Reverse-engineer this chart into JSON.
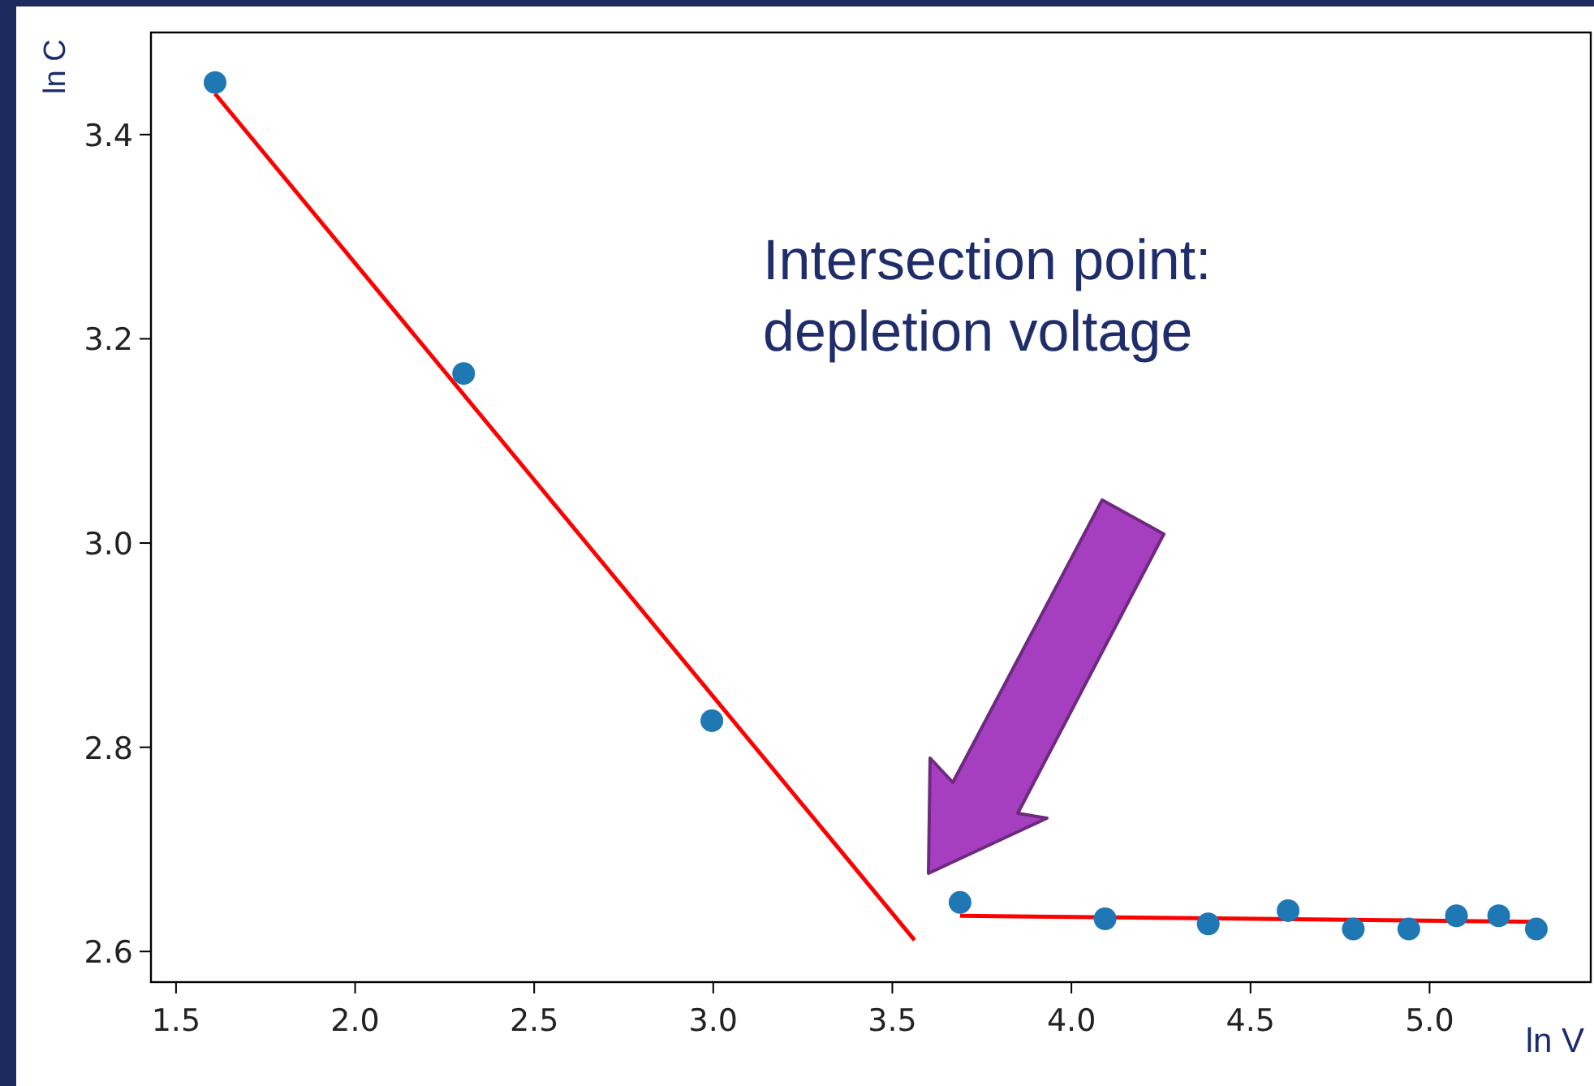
{
  "chart_data": {
    "type": "scatter",
    "xlabel": "ln V",
    "ylabel": "ln C",
    "xlim": [
      1.43,
      5.45
    ],
    "ylim": [
      2.57,
      3.5
    ],
    "xticks": [
      {
        "value": 1.5,
        "label": "1.5"
      },
      {
        "value": 2,
        "label": "2.0"
      },
      {
        "value": 2.5,
        "label": "2.5"
      },
      {
        "value": 3,
        "label": "3.0"
      },
      {
        "value": 3.5,
        "label": "3.5"
      },
      {
        "value": 4,
        "label": "4.0"
      },
      {
        "value": 4.5,
        "label": "4.5"
      },
      {
        "value": 5,
        "label": "5.0"
      }
    ],
    "yticks": [
      2.6,
      2.8,
      {
        "value": 3,
        "label": "3.0"
      },
      3.2,
      3.4
    ],
    "grid": false,
    "series": [
      {
        "marker": "circle",
        "color": "#1f77b4",
        "x": [
          1.609,
          2.303,
          2.996,
          3.689,
          4.094,
          4.382,
          4.605,
          4.787,
          4.942,
          5.075,
          5.193,
          5.298
        ],
        "values": [
          3.451,
          3.166,
          2.826,
          2.648,
          2.632,
          2.627,
          2.64,
          2.622,
          2.622,
          2.635,
          2.635,
          2.622
        ]
      },
      {
        "type": "line",
        "color": "#ff0000",
        "x": [
          1.609,
          3.562
        ],
        "values": [
          3.44,
          2.611
        ]
      },
      {
        "type": "line",
        "color": "#ff0000",
        "x": [
          3.689,
          5.298
        ],
        "values": [
          2.635,
          2.629
        ]
      }
    ],
    "annotations": [
      "Intersection point:\ndepletion voltage"
    ]
  }
}
